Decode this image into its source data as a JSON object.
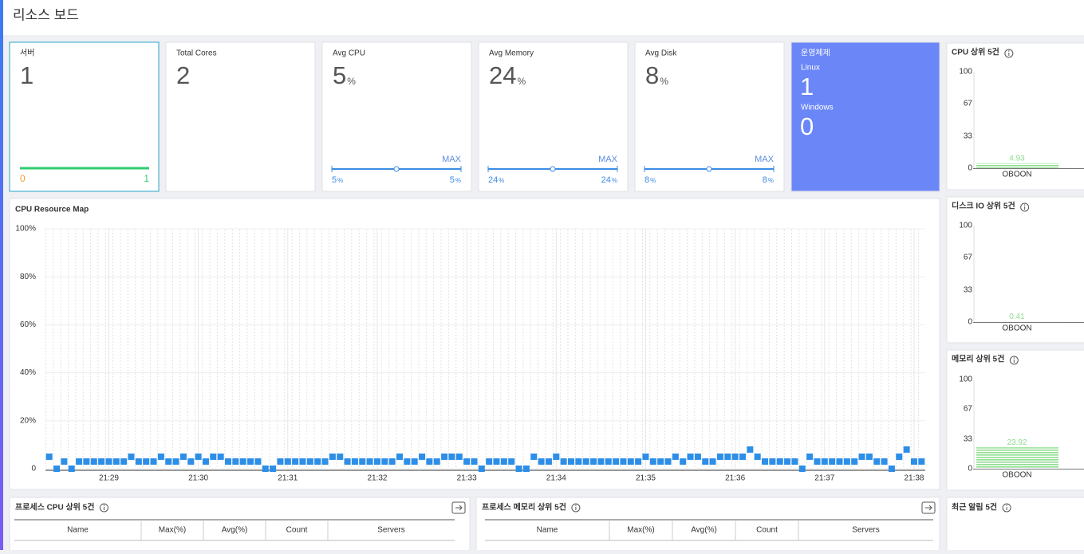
{
  "header": {
    "title": "리소스 보드"
  },
  "cards": [
    {
      "label": "서버",
      "value": 1,
      "min": 0,
      "max": 1
    },
    {
      "label": "Total Cores",
      "value": 2
    },
    {
      "label": "Avg CPU",
      "value": 5,
      "unit": "%",
      "max_label": "MAX",
      "low": 5,
      "high": 5
    },
    {
      "label": "Avg Memory",
      "value": 24,
      "unit": "%",
      "max_label": "MAX",
      "low": 24,
      "high": 24
    },
    {
      "label": "Avg Disk",
      "value": 8,
      "unit": "%",
      "max_label": "MAX",
      "low": 8,
      "high": 8
    }
  ],
  "os": {
    "title": "운영체제",
    "items": [
      {
        "label": "Linux",
        "value": 1
      },
      {
        "label": "Windows",
        "value": 0
      }
    ]
  },
  "chart_data": [
    {
      "type": "scatter",
      "title": "CPU Resource Map",
      "color": "#2d8ee8",
      "categories": [
        null,
        null,
        null,
        null,
        null,
        null,
        null,
        null,
        "21:29",
        null,
        null,
        null,
        null,
        null,
        null,
        null,
        null,
        null,
        null,
        null,
        "21:30",
        null,
        null,
        null,
        null,
        null,
        null,
        null,
        null,
        null,
        null,
        null,
        "21:31",
        null,
        null,
        null,
        null,
        null,
        null,
        null,
        null,
        null,
        null,
        null,
        "21:32",
        null,
        null,
        null,
        null,
        null,
        null,
        null,
        null,
        null,
        null,
        null,
        "21:33",
        null,
        null,
        null,
        null,
        null,
        null,
        null,
        null,
        null,
        null,
        null,
        "21:34",
        null,
        null,
        null,
        null,
        null,
        null,
        null,
        null,
        null,
        null,
        null,
        "21:35",
        null,
        null,
        null,
        null,
        null,
        null,
        null,
        null,
        null,
        null,
        null,
        "21:36",
        null,
        null,
        null,
        null,
        null,
        null,
        null,
        null,
        null,
        null,
        null,
        "21:37",
        null,
        null,
        null,
        null,
        null,
        null,
        null,
        null,
        null,
        null,
        null,
        "21:38",
        null
      ],
      "values": [
        5,
        0,
        3,
        0,
        3,
        3,
        3,
        3,
        3,
        3,
        3,
        5,
        3,
        3,
        3,
        5,
        3,
        3,
        5,
        3,
        5,
        3,
        5,
        5,
        3,
        3,
        3,
        3,
        3,
        0,
        0,
        3,
        3,
        3,
        3,
        3,
        3,
        3,
        5,
        5,
        3,
        3,
        3,
        3,
        3,
        3,
        3,
        5,
        3,
        3,
        5,
        3,
        3,
        5,
        5,
        5,
        3,
        3,
        0,
        3,
        3,
        3,
        3,
        0,
        0,
        5,
        3,
        3,
        5,
        3,
        3,
        3,
        3,
        3,
        3,
        3,
        3,
        3,
        3,
        3,
        5,
        3,
        3,
        3,
        5,
        3,
        5,
        5,
        3,
        3,
        5,
        5,
        5,
        5,
        8,
        5,
        3,
        3,
        3,
        3,
        3,
        0,
        5,
        3,
        3,
        3,
        3,
        3,
        3,
        5,
        5,
        3,
        3,
        0,
        5,
        8,
        3,
        3
      ],
      "ylim": [
        0,
        100
      ],
      "yticks": [
        0,
        {
          "value": 20,
          "label": "20%"
        },
        {
          "value": 40,
          "label": "40%"
        },
        {
          "value": 60,
          "label": "60%"
        },
        {
          "value": 80,
          "label": "80%"
        },
        {
          "value": 100,
          "label": "100%"
        }
      ],
      "grid": true
    },
    {
      "type": "bar",
      "title": "CPU 상위 5건",
      "categories": [
        "OBOON"
      ],
      "values": [
        4.93
      ],
      "ylim": [
        0,
        100
      ],
      "yticks": [
        0,
        33,
        67,
        100
      ],
      "color": "#8fdc8f"
    },
    {
      "type": "bar",
      "title": "디스크 IO 상위 5건",
      "categories": [
        "OBOON"
      ],
      "values": [
        0.41
      ],
      "ylim": [
        0,
        100
      ],
      "yticks": [
        0,
        33,
        67,
        100
      ],
      "color": "#8fdc8f"
    },
    {
      "type": "bar",
      "title": "메모리 상위 5건",
      "categories": [
        "OBOON"
      ],
      "values": [
        23.92
      ],
      "ylim": [
        0,
        100
      ],
      "yticks": [
        0,
        33,
        67,
        100
      ],
      "color": "#8fdc8f"
    }
  ],
  "tables": [
    {
      "title": "프로세스 CPU 상위 5건",
      "columns": [
        "Name",
        "Max(%)",
        "Avg(%)",
        "Count",
        "Servers"
      ]
    },
    {
      "title": "프로세스 메모리 상위 5건",
      "columns": [
        "Name",
        "Max(%)",
        "Avg(%)",
        "Count",
        "Servers"
      ]
    }
  ],
  "alerts": {
    "title": "최근 알림 5건"
  }
}
